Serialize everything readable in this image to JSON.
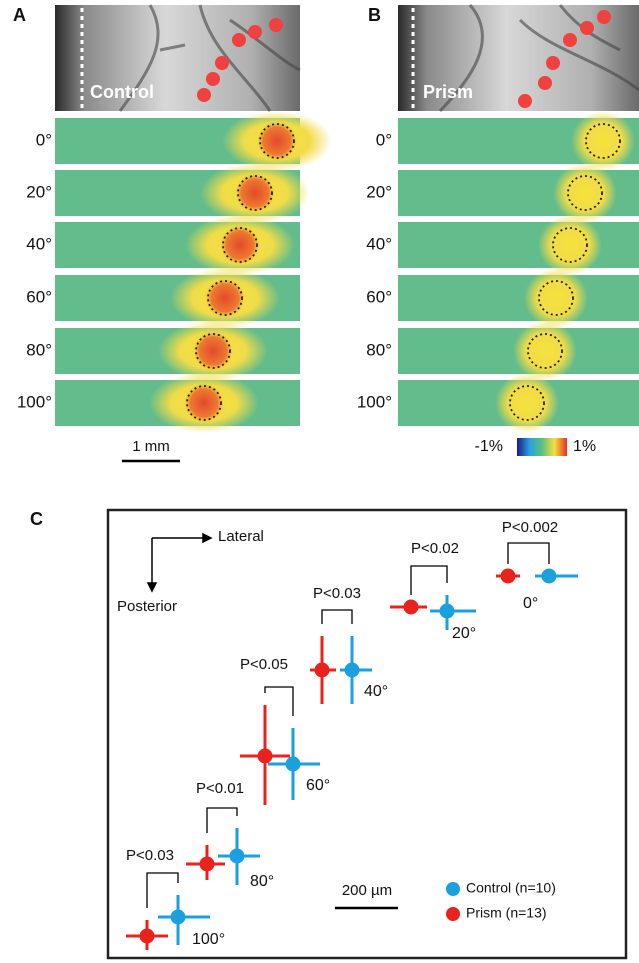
{
  "panel_a": {
    "label": "A",
    "image_label": "Control",
    "rows": [
      "0°",
      "20°",
      "40°",
      "60°",
      "80°",
      "100°"
    ],
    "scale_bar": "1 mm"
  },
  "panel_b": {
    "label": "B",
    "image_label": "Prism",
    "rows": [
      "0°",
      "20°",
      "40°",
      "60°",
      "80°",
      "100°"
    ],
    "colorbar": {
      "min": "-1%",
      "max": "1%"
    }
  },
  "panel_c": {
    "label": "C",
    "orientation": {
      "lateral": "Lateral",
      "posterior": "Posterior"
    },
    "pairs": [
      {
        "angle": "0°",
        "p": "P<0.002"
      },
      {
        "angle": "20°",
        "p": "P<0.02"
      },
      {
        "angle": "40°",
        "p": "P<0.03"
      },
      {
        "angle": "60°",
        "p": "P<0.05"
      },
      {
        "angle": "80°",
        "p": "P<0.01"
      },
      {
        "angle": "100°",
        "p": "P<0.03"
      }
    ],
    "scale_bar": "200 µm",
    "legend": [
      "Control (n=10)",
      "Prism (n=13)"
    ]
  }
}
